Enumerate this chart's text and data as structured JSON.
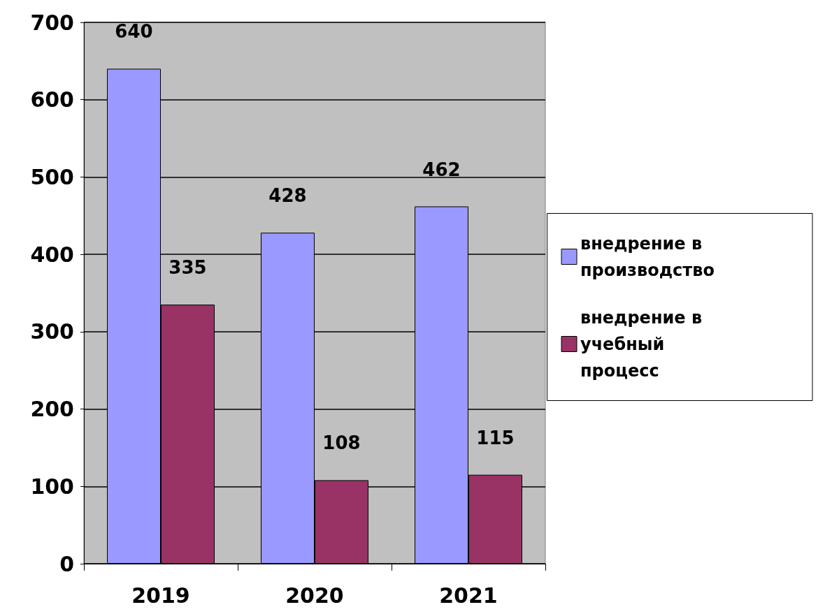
{
  "chart_data": {
    "type": "bar",
    "categories": [
      "2019",
      "2020",
      "2021"
    ],
    "series": [
      {
        "name": "внедрение в производство",
        "color": "#9999ff",
        "values": [
          640,
          428,
          462
        ]
      },
      {
        "name": "внедрение в учебный процесс",
        "color": "#993366",
        "values": [
          335,
          108,
          115
        ]
      }
    ],
    "ylim": [
      0,
      700
    ],
    "yticks": [
      0,
      100,
      200,
      300,
      400,
      500,
      600,
      700
    ],
    "grid": "y",
    "legend": "right",
    "data_labels": true
  }
}
